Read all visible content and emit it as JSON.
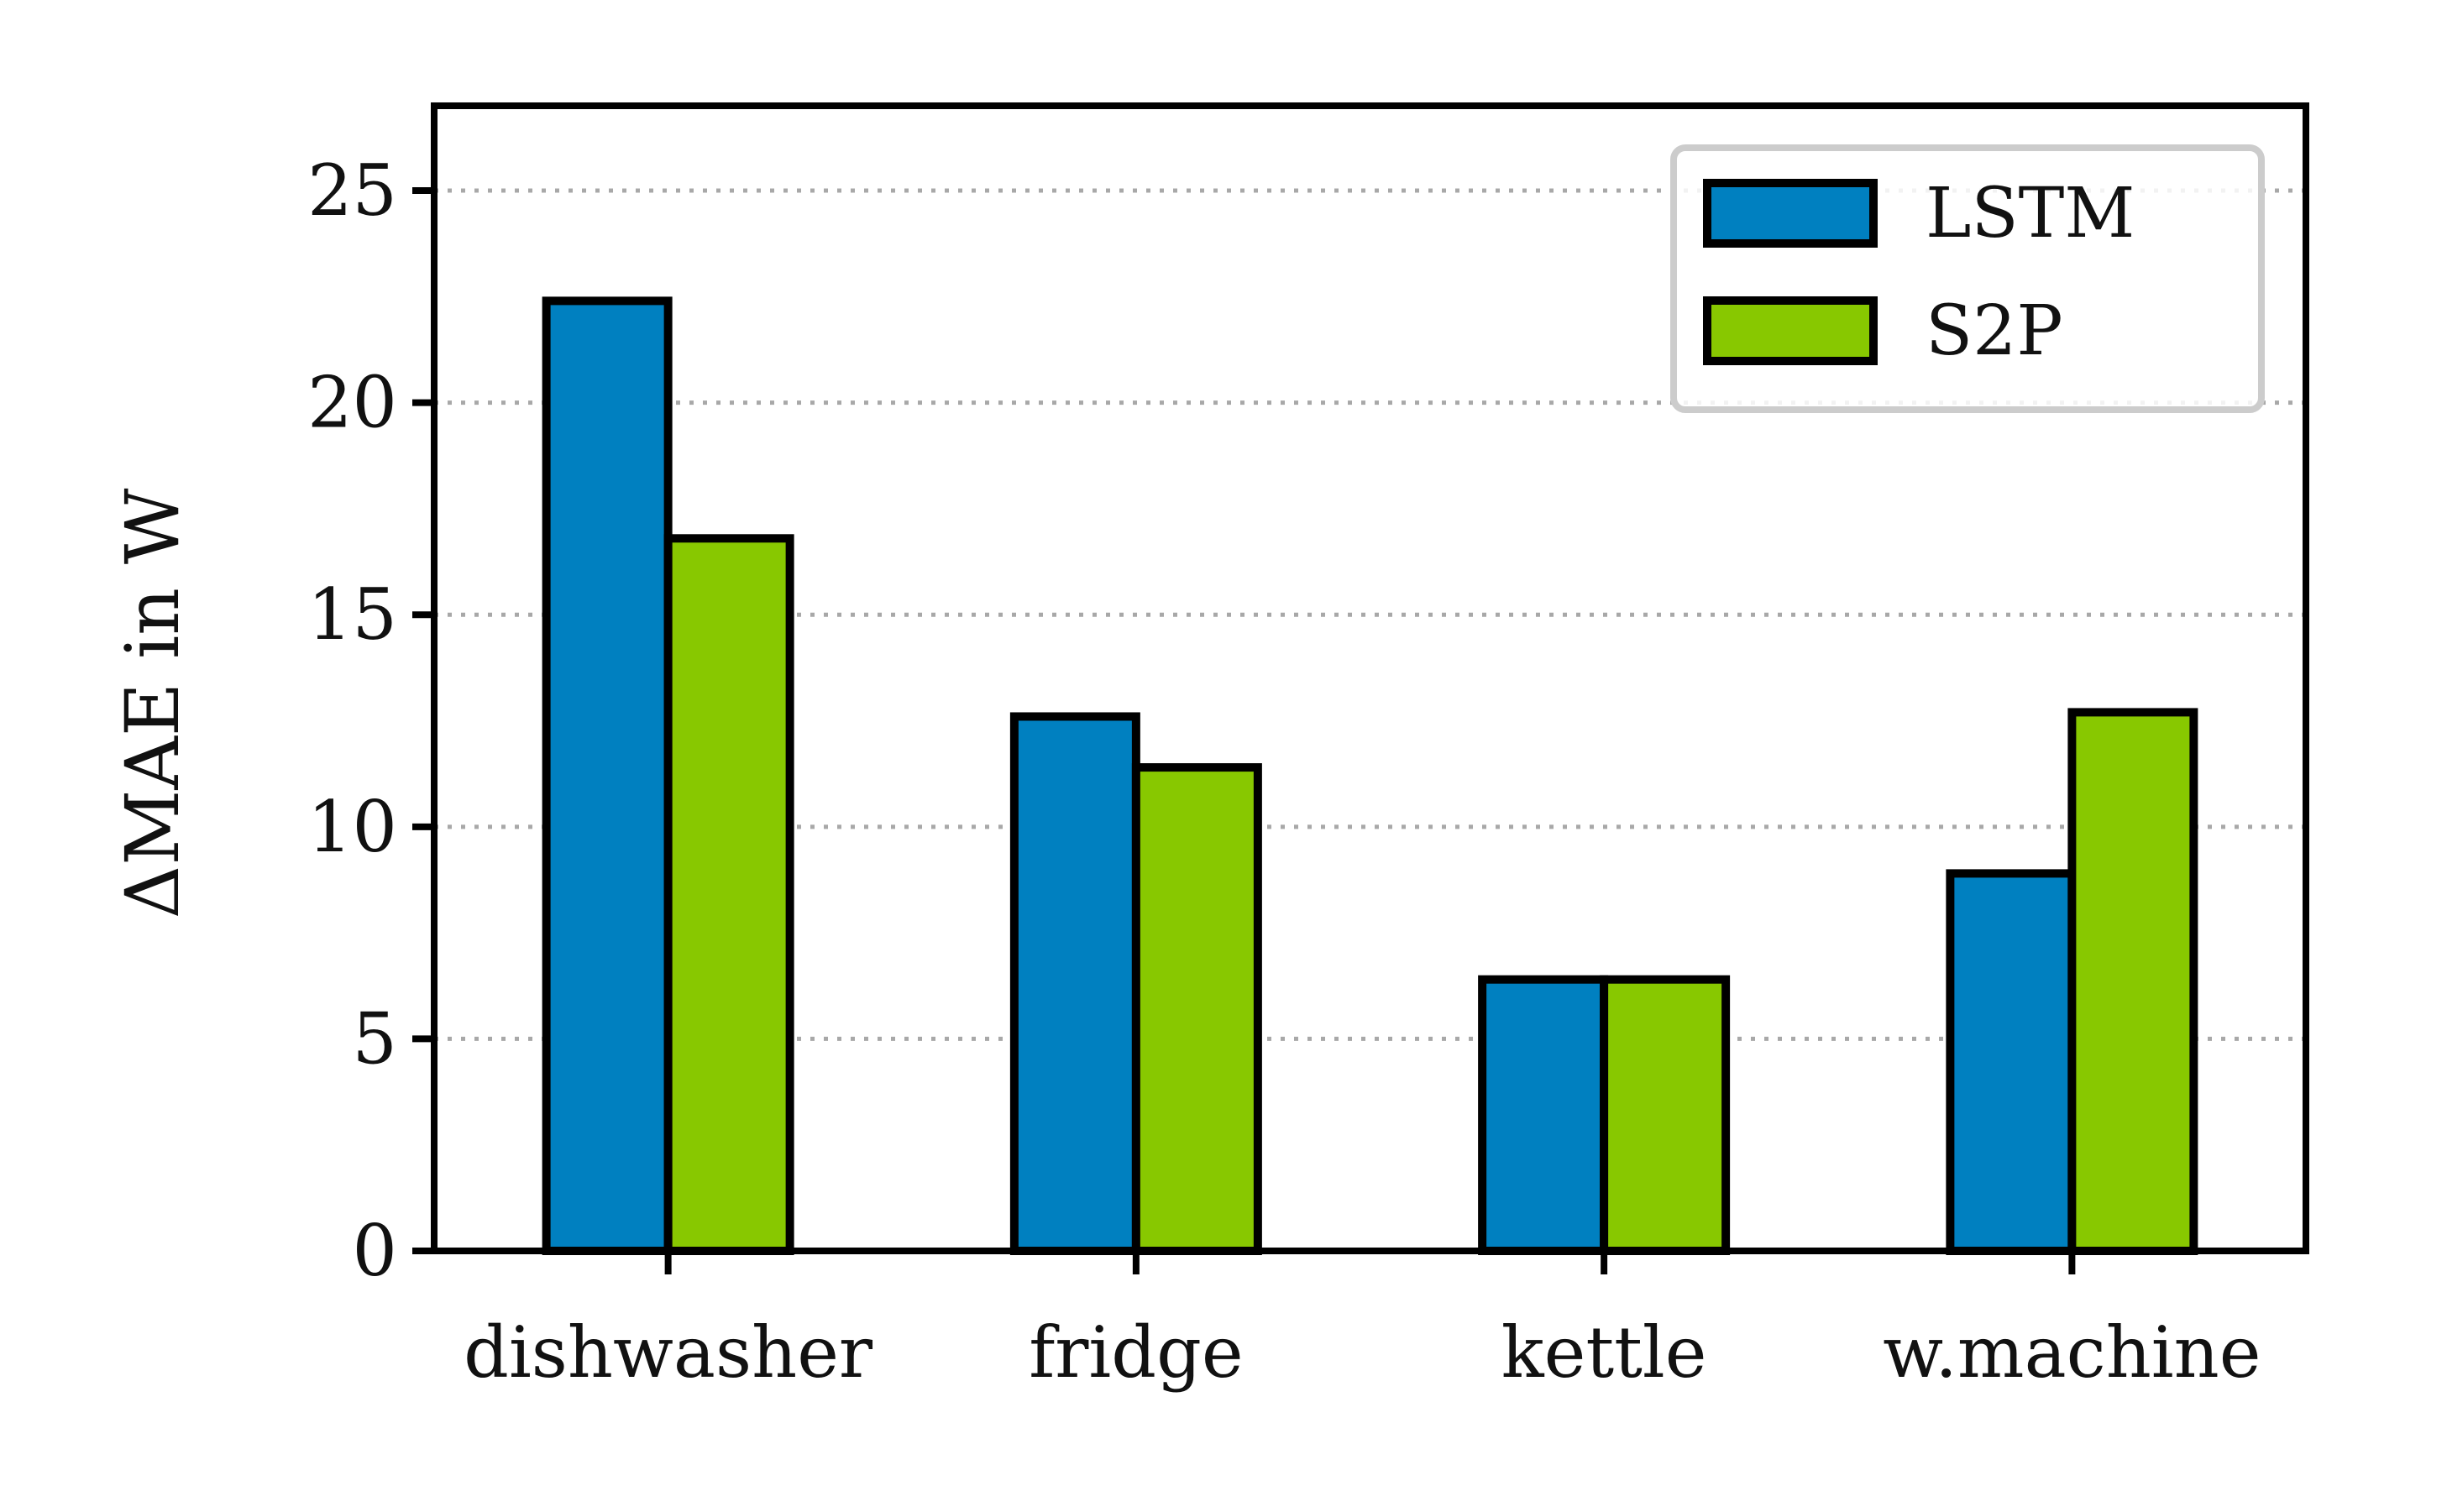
{
  "chart_data": {
    "type": "bar",
    "categories": [
      "dishwasher",
      "fridge",
      "kettle",
      "w.machine"
    ],
    "series": [
      {
        "name": "LSTM",
        "values": [
          22.4,
          12.6,
          6.4,
          8.9
        ],
        "color": "#0080c0"
      },
      {
        "name": "S2P",
        "values": [
          16.8,
          11.4,
          6.4,
          12.7
        ],
        "color": "#88c800"
      }
    ],
    "title": "",
    "xlabel": "",
    "ylabel": "ΔMAE in W",
    "ylim": [
      0,
      27
    ],
    "yticks": [
      0,
      5,
      10,
      15,
      20,
      25
    ],
    "grid": "horizontal dotted",
    "legend_position": "top-right"
  }
}
